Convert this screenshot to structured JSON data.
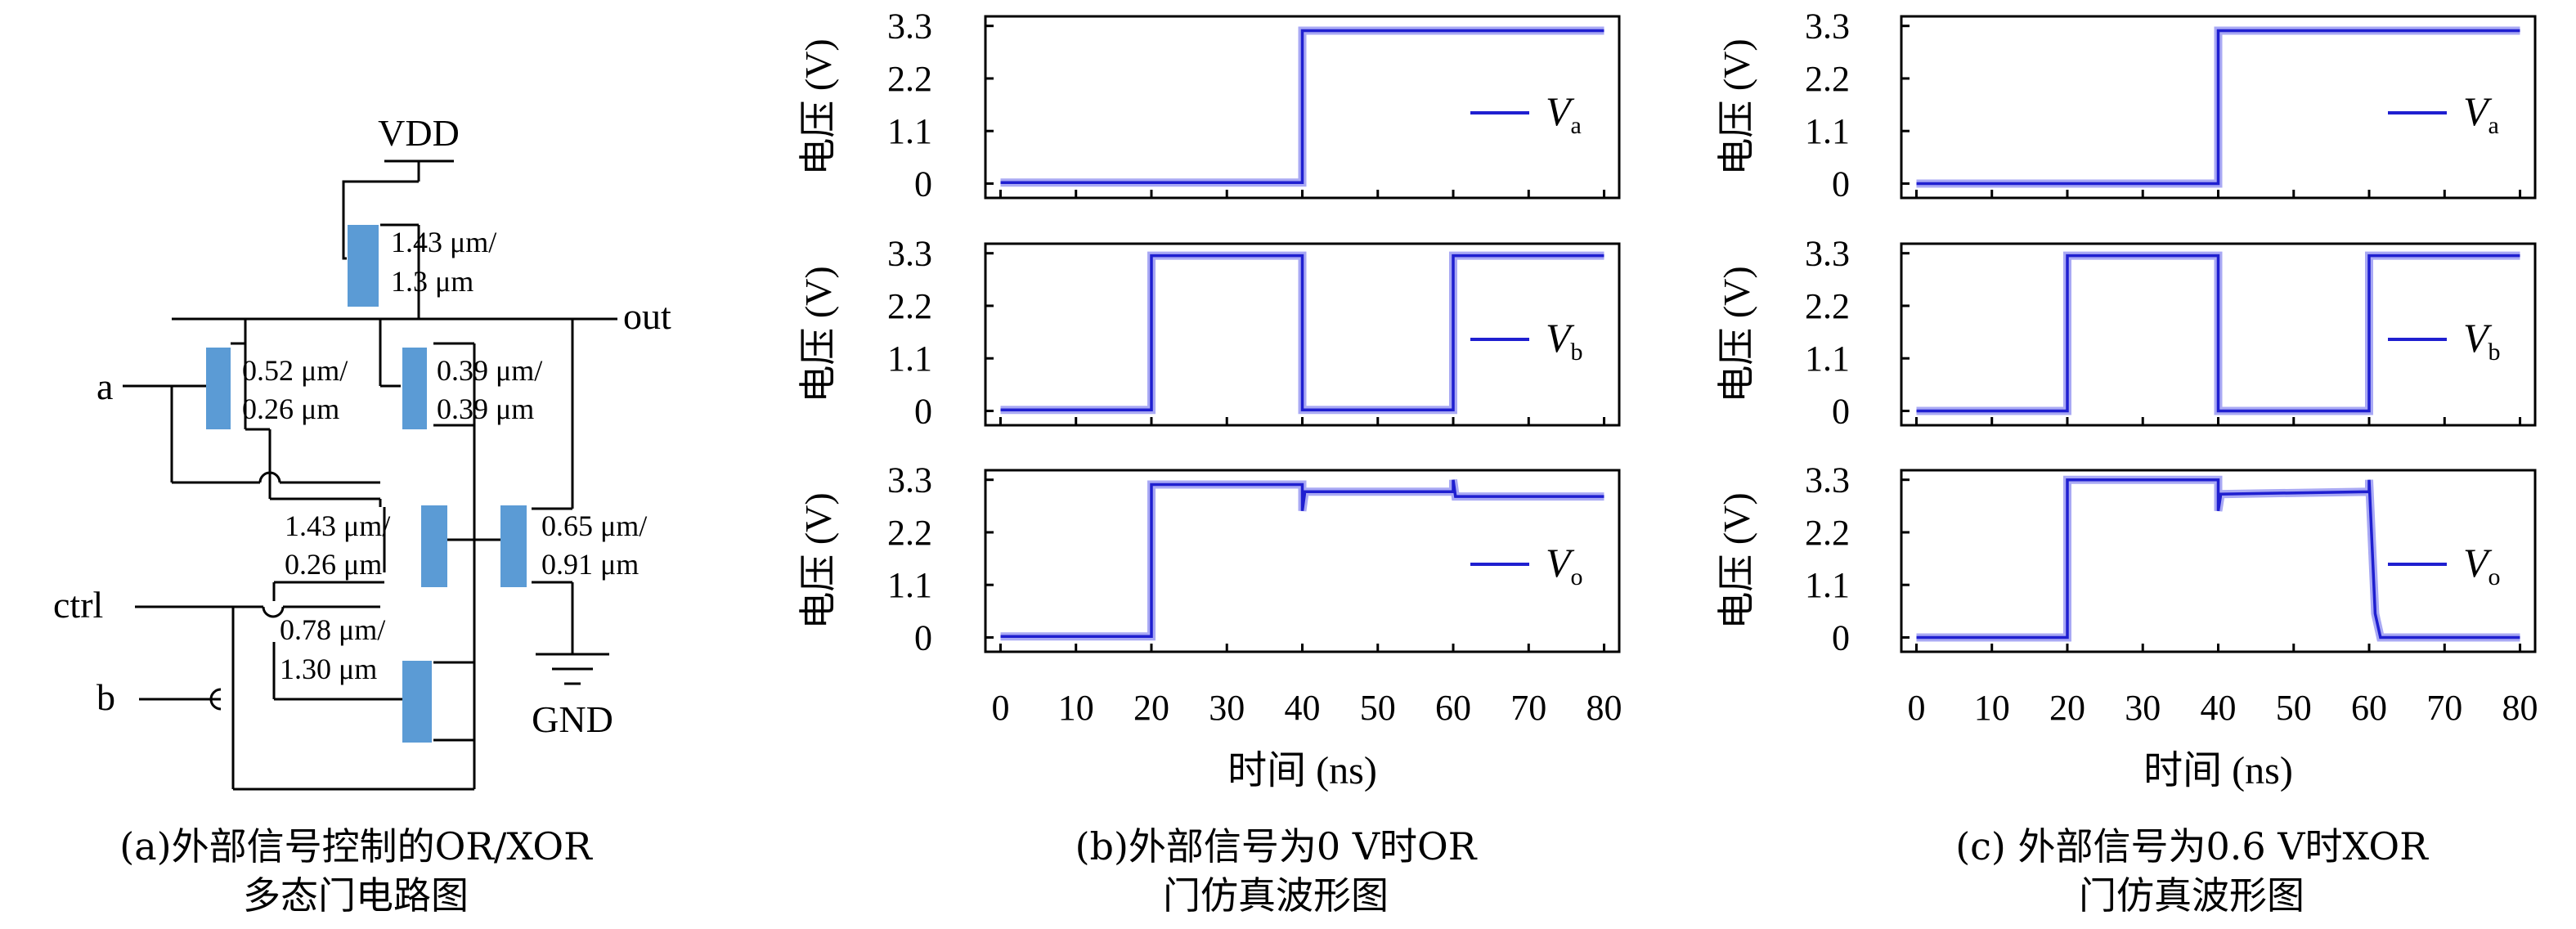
{
  "circuit": {
    "vdd": "VDD",
    "gnd": "GND",
    "out": "out",
    "in_a": "a",
    "in_b": "b",
    "in_ctrl": "ctrl",
    "transistors": [
      {
        "w": "1.43 μm/",
        "l": "1.3 μm"
      },
      {
        "w": "0.52 μm/",
        "l": "0.26 μm"
      },
      {
        "w": "0.39 μm/",
        "l": "0.39 μm"
      },
      {
        "w": "1.43 μm/",
        "l": "0.26 μm"
      },
      {
        "w": "0.65 μm/",
        "l": "0.91 μm"
      },
      {
        "w": "0.78 μm/",
        "l": "1.30 μm"
      }
    ],
    "transistor_color": "#5b9bd5"
  },
  "captions": {
    "a": [
      "(a)外部信号控制的OR/XOR",
      "多态门电路图"
    ],
    "b": [
      "(b)外部信号为0 V时OR",
      "门仿真波形图"
    ],
    "c": [
      "(c) 外部信号为0.6 V时XOR",
      "门仿真波形图"
    ]
  },
  "chart_data": [
    {
      "type": "line",
      "panel": "b",
      "xlabel": "时间 (ns)",
      "xlim": [
        -2,
        82
      ],
      "xticks": [
        0,
        10,
        20,
        30,
        40,
        50,
        60,
        70,
        80
      ],
      "ylabel": "电压 (V)",
      "ylim": [
        -0.3,
        3.5
      ],
      "yticks": [
        "0",
        "1.1",
        "2.2",
        "3.3"
      ],
      "line_color": "#1f1fd0",
      "shadow_color": "#8c8cf0",
      "subplots": [
        {
          "legend": "V",
          "legend_sub": "a",
          "x": [
            0,
            40,
            40,
            80
          ],
          "y": [
            0.02,
            0.02,
            3.2,
            3.2
          ]
        },
        {
          "legend": "V",
          "legend_sub": "b",
          "x": [
            0,
            20,
            20,
            40,
            40,
            60,
            60,
            80
          ],
          "y": [
            0.02,
            0.02,
            3.25,
            3.25,
            0.02,
            0.02,
            3.25,
            3.25
          ]
        },
        {
          "legend": "V",
          "legend_sub": "o",
          "x": [
            0,
            20,
            20,
            40,
            40,
            40.3,
            40.3,
            60,
            60,
            60.3,
            60.3,
            80
          ],
          "y": [
            0.02,
            0.02,
            3.2,
            3.2,
            2.65,
            3.0,
            3.05,
            3.05,
            3.3,
            2.95,
            2.95,
            2.95
          ]
        }
      ]
    },
    {
      "type": "line",
      "panel": "c",
      "xlabel": "时间 (ns)",
      "xlim": [
        -2,
        82
      ],
      "xticks": [
        0,
        10,
        20,
        30,
        40,
        50,
        60,
        70,
        80
      ],
      "ylabel": "电压 (V)",
      "ylim": [
        -0.3,
        3.5
      ],
      "yticks": [
        "0",
        "1.1",
        "2.2",
        "3.3"
      ],
      "line_color": "#1f1fd0",
      "shadow_color": "#8c8cf0",
      "subplots": [
        {
          "legend": "V",
          "legend_sub": "a",
          "x": [
            0,
            40,
            40,
            80
          ],
          "y": [
            0.0,
            0.0,
            3.2,
            3.2
          ]
        },
        {
          "legend": "V",
          "legend_sub": "b",
          "x": [
            0,
            20,
            20,
            40,
            40,
            60,
            60,
            80
          ],
          "y": [
            0.0,
            0.0,
            3.25,
            3.25,
            0.0,
            0.0,
            3.25,
            3.25
          ]
        },
        {
          "legend": "V",
          "legend_sub": "o",
          "x": [
            0,
            20,
            20,
            40,
            40,
            40.3,
            40.3,
            60,
            60,
            60.8,
            61.5,
            80
          ],
          "y": [
            0.0,
            0.0,
            3.3,
            3.3,
            2.65,
            2.95,
            3.0,
            3.05,
            3.3,
            0.5,
            0.0,
            0.0
          ]
        }
      ]
    }
  ]
}
